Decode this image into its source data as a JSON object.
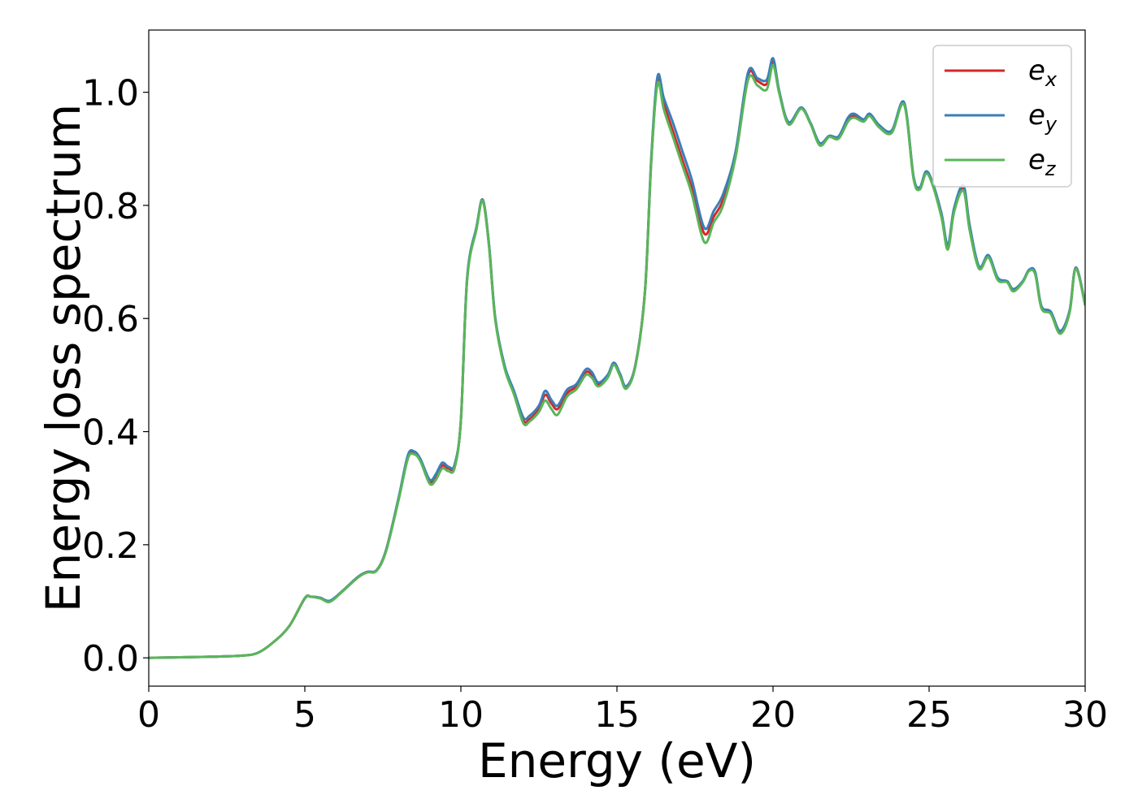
{
  "chart_data": {
    "type": "line",
    "xlabel": "Energy (eV)",
    "ylabel": "Energy loss spectrum",
    "xlim": [
      0,
      30
    ],
    "ylim": [
      -0.05,
      1.11
    ],
    "xticks": [
      0,
      5,
      10,
      15,
      20,
      25,
      30
    ],
    "xtick_labels": [
      "0",
      "5",
      "10",
      "15",
      "20",
      "25",
      "30"
    ],
    "yticks": [
      0.0,
      0.2,
      0.4,
      0.6,
      0.8,
      1.0
    ],
    "ytick_labels": [
      "0.0",
      "0.2",
      "0.4",
      "0.6",
      "0.8",
      "1.0"
    ],
    "grid": false,
    "legend_position": "top-right",
    "x": [
      0,
      1,
      2,
      3,
      3.5,
      4,
      4.5,
      5,
      5.2,
      5.5,
      5.8,
      6.2,
      6.7,
      7,
      7.3,
      7.6,
      8,
      8.3,
      8.5,
      8.7,
      9,
      9.2,
      9.4,
      9.6,
      9.8,
      10,
      10.2,
      10.5,
      10.7,
      10.9,
      11.1,
      11.4,
      11.7,
      12,
      12.2,
      12.5,
      12.7,
      12.9,
      13.1,
      13.4,
      13.7,
      14,
      14.2,
      14.4,
      14.7,
      14.9,
      15.1,
      15.3,
      15.6,
      15.9,
      16.1,
      16.3,
      16.5,
      16.8,
      17.1,
      17.4,
      17.8,
      18.1,
      18.4,
      18.8,
      19.2,
      19.5,
      19.8,
      20,
      20.2,
      20.5,
      20.9,
      21.2,
      21.5,
      21.8,
      22.1,
      22.4,
      22.6,
      22.9,
      23.1,
      23.4,
      23.8,
      24.2,
      24.5,
      24.7,
      24.9,
      25.1,
      25.4,
      25.6,
      25.8,
      26.1,
      26.3,
      26.6,
      26.9,
      27.2,
      27.5,
      27.7,
      28,
      28.2,
      28.4,
      28.6,
      28.9,
      29.2,
      29.5,
      29.7,
      30
    ],
    "series": [
      {
        "name": "e_x",
        "label_base": "e",
        "label_sub": "x",
        "color": "#d62728",
        "values": [
          0.0,
          0.001,
          0.002,
          0.004,
          0.009,
          0.028,
          0.056,
          0.105,
          0.108,
          0.106,
          0.1,
          0.118,
          0.143,
          0.152,
          0.155,
          0.19,
          0.28,
          0.355,
          0.362,
          0.35,
          0.312,
          0.32,
          0.34,
          0.335,
          0.34,
          0.42,
          0.67,
          0.76,
          0.81,
          0.73,
          0.6,
          0.515,
          0.47,
          0.42,
          0.422,
          0.44,
          0.465,
          0.45,
          0.44,
          0.468,
          0.48,
          0.505,
          0.5,
          0.483,
          0.498,
          0.52,
          0.5,
          0.478,
          0.52,
          0.65,
          0.88,
          1.02,
          0.98,
          0.93,
          0.88,
          0.83,
          0.75,
          0.78,
          0.81,
          0.89,
          1.03,
          1.02,
          1.015,
          1.055,
          1.0,
          0.945,
          0.972,
          0.945,
          0.908,
          0.922,
          0.92,
          0.95,
          0.958,
          0.95,
          0.96,
          0.94,
          0.93,
          0.98,
          0.85,
          0.83,
          0.858,
          0.84,
          0.78,
          0.725,
          0.79,
          0.83,
          0.76,
          0.69,
          0.71,
          0.67,
          0.665,
          0.65,
          0.665,
          0.685,
          0.68,
          0.62,
          0.61,
          0.575,
          0.612,
          0.69,
          0.625
        ]
      },
      {
        "name": "e_y",
        "label_base": "e",
        "label_sub": "y",
        "color": "#3a7fb8",
        "values": [
          0.0,
          0.001,
          0.002,
          0.004,
          0.009,
          0.028,
          0.056,
          0.105,
          0.108,
          0.106,
          0.101,
          0.118,
          0.143,
          0.152,
          0.155,
          0.19,
          0.282,
          0.358,
          0.365,
          0.352,
          0.315,
          0.325,
          0.345,
          0.338,
          0.342,
          0.42,
          0.672,
          0.762,
          0.81,
          0.732,
          0.602,
          0.517,
          0.472,
          0.425,
          0.428,
          0.446,
          0.472,
          0.456,
          0.446,
          0.474,
          0.484,
          0.51,
          0.505,
          0.487,
          0.5,
          0.522,
          0.502,
          0.48,
          0.52,
          0.65,
          0.885,
          1.028,
          0.99,
          0.945,
          0.895,
          0.845,
          0.76,
          0.79,
          0.82,
          0.895,
          1.035,
          1.025,
          1.022,
          1.06,
          1.002,
          0.947,
          0.973,
          0.946,
          0.91,
          0.923,
          0.922,
          0.955,
          0.962,
          0.952,
          0.962,
          0.942,
          0.932,
          0.982,
          0.852,
          0.832,
          0.86,
          0.842,
          0.785,
          0.73,
          0.795,
          0.835,
          0.765,
          0.692,
          0.712,
          0.672,
          0.666,
          0.652,
          0.666,
          0.686,
          0.682,
          0.622,
          0.612,
          0.578,
          0.614,
          0.69,
          0.626
        ]
      },
      {
        "name": "e_z",
        "label_base": "e",
        "label_sub": "z",
        "color": "#5ab55a",
        "values": [
          0.0,
          0.001,
          0.002,
          0.004,
          0.009,
          0.028,
          0.056,
          0.106,
          0.108,
          0.105,
          0.099,
          0.117,
          0.142,
          0.151,
          0.154,
          0.188,
          0.278,
          0.352,
          0.36,
          0.348,
          0.308,
          0.315,
          0.335,
          0.33,
          0.336,
          0.42,
          0.668,
          0.758,
          0.808,
          0.728,
          0.598,
          0.512,
          0.466,
          0.415,
          0.418,
          0.435,
          0.455,
          0.44,
          0.43,
          0.462,
          0.475,
          0.5,
          0.495,
          0.48,
          0.495,
          0.518,
          0.498,
          0.476,
          0.518,
          0.648,
          0.878,
          1.015,
          0.97,
          0.92,
          0.87,
          0.82,
          0.735,
          0.77,
          0.8,
          0.885,
          1.022,
          1.012,
          1.005,
          1.048,
          0.998,
          0.943,
          0.971,
          0.944,
          0.906,
          0.921,
          0.918,
          0.948,
          0.955,
          0.948,
          0.958,
          0.938,
          0.928,
          0.978,
          0.848,
          0.828,
          0.856,
          0.838,
          0.778,
          0.722,
          0.788,
          0.826,
          0.756,
          0.688,
          0.708,
          0.668,
          0.664,
          0.648,
          0.664,
          0.684,
          0.678,
          0.618,
          0.608,
          0.573,
          0.61,
          0.688,
          0.623
        ]
      }
    ]
  }
}
